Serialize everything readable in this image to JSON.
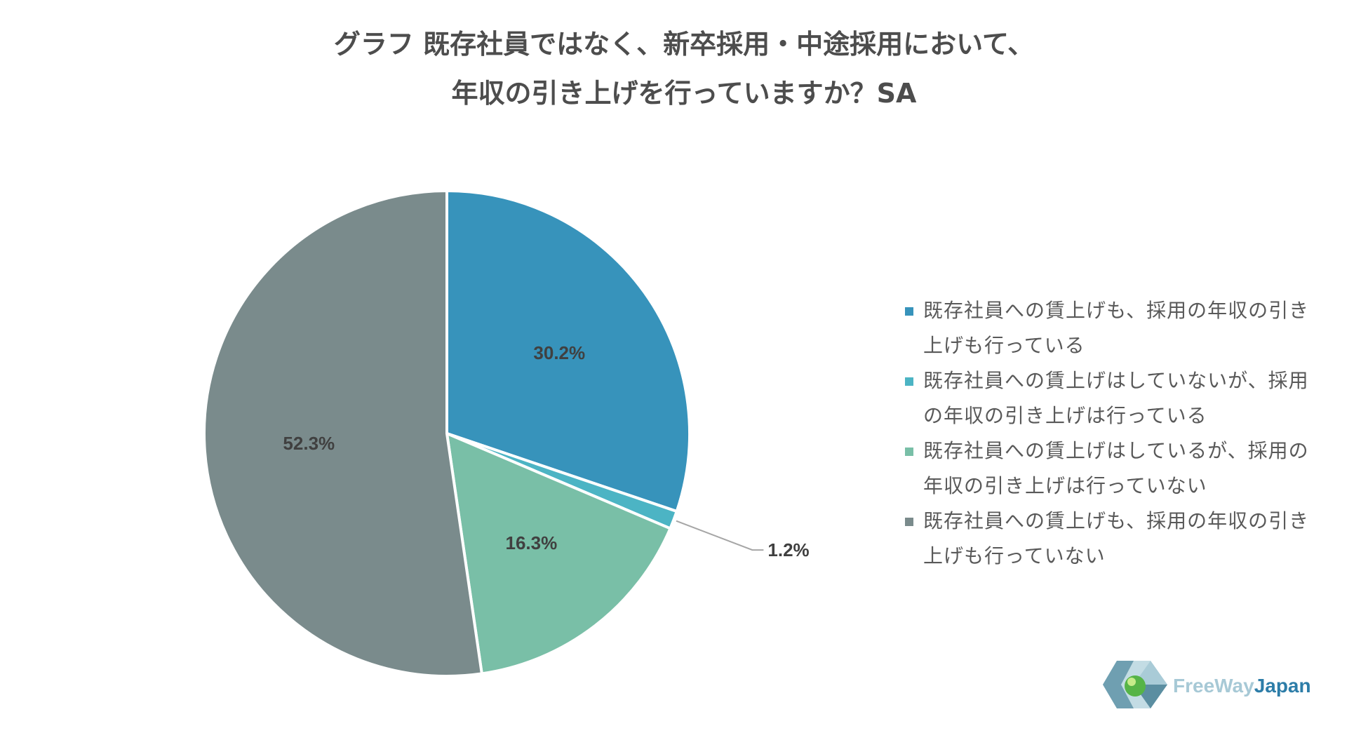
{
  "chart_data": {
    "type": "pie",
    "title_lines": [
      "グラフ 既存社員ではなく、新卒採用・中途採用において、",
      "年収の引き上げを行っていますか？SA"
    ],
    "slices": [
      {
        "label_lines": [
          "既存社員への賃上げも、採用の年収の引き",
          "上げも行っている"
        ],
        "value": 30.2,
        "data_label": "30.2%",
        "color": "#3793bb"
      },
      {
        "label_lines": [
          "既存社員への賃上げはしていないが、採用",
          "の年収の引き上げは行っている"
        ],
        "value": 1.2,
        "data_label": "1.2%",
        "color": "#4cb4c4"
      },
      {
        "label_lines": [
          "既存社員への賃上げはしているが、採用の",
          "年収の引き上げは行っていない"
        ],
        "value": 16.3,
        "data_label": "16.3%",
        "color": "#79bfa7"
      },
      {
        "label_lines": [
          "既存社員への賃上げも、採用の年収の引き",
          "上げも行っていない"
        ],
        "value": 52.3,
        "data_label": "52.3%",
        "color": "#7a8b8c"
      }
    ],
    "legend_position": "right",
    "start_angle": "12 o'clock",
    "direction": "clockwise"
  },
  "logo": {
    "text_free_way": "FreeWay",
    "text_japan": "Japan",
    "color_free_way": "#a7c9d6",
    "color_japan": "#2d7da8"
  }
}
